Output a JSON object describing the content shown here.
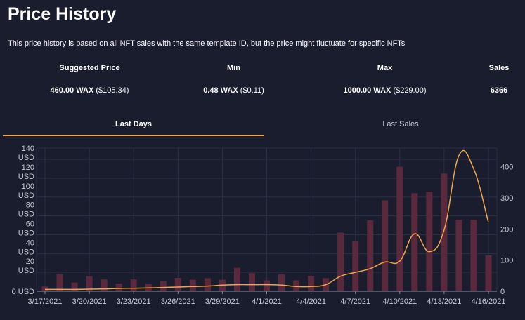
{
  "header": {
    "title": "Price History",
    "description": "This price history is based on all NFT sales with the same template ID, but the price might fluctuate for specific NFTs"
  },
  "stats": {
    "suggested": {
      "label": "Suggested Price",
      "value_bold": "460.00 WAX",
      "value_rest": " ($105.34)"
    },
    "min": {
      "label": "Min",
      "value_bold": "0.48 WAX",
      "value_rest": " ($0.11)"
    },
    "max": {
      "label": "Max",
      "value_bold": "1000.00 WAX",
      "value_rest": " ($229.00)"
    },
    "sales": {
      "label": "Sales",
      "value_bold": "6366",
      "value_rest": ""
    }
  },
  "tabs": [
    {
      "label": "Last Days",
      "active": true
    },
    {
      "label": "Last Sales",
      "active": false
    }
  ],
  "colors": {
    "background": "#1a1d2e",
    "accent": "#f0a54a",
    "bar": "#5a2a3c",
    "grid": "#2c3046"
  },
  "chart_data": {
    "type": "bar",
    "x_ticks": [
      "3/17/2021",
      "3/20/2021",
      "3/23/2021",
      "3/26/2021",
      "3/29/2021",
      "4/1/2021",
      "4/4/2021",
      "4/7/2021",
      "4/10/2021",
      "4/13/2021",
      "4/16/2021"
    ],
    "x": [
      "3/17/2021",
      "3/18/2021",
      "3/19/2021",
      "3/20/2021",
      "3/21/2021",
      "3/22/2021",
      "3/23/2021",
      "3/24/2021",
      "3/25/2021",
      "3/26/2021",
      "3/27/2021",
      "3/28/2021",
      "3/29/2021",
      "3/30/2021",
      "3/31/2021",
      "4/1/2021",
      "4/2/2021",
      "4/3/2021",
      "4/4/2021",
      "4/5/2021",
      "4/6/2021",
      "4/7/2021",
      "4/8/2021",
      "4/9/2021",
      "4/10/2021",
      "4/11/2021",
      "4/12/2021",
      "4/13/2021",
      "4/14/2021",
      "4/15/2021",
      "4/16/2021"
    ],
    "series": [
      {
        "type": "bar",
        "axis": "right",
        "values": [
          15,
          55,
          28,
          48,
          38,
          25,
          38,
          25,
          33,
          43,
          37,
          42,
          37,
          75,
          58,
          35,
          54,
          35,
          49,
          42,
          188,
          160,
          228,
          292,
          400,
          315,
          320,
          378,
          230,
          230,
          115
        ]
      },
      {
        "type": "line",
        "axis": "left",
        "values": [
          2,
          2,
          2,
          2.2,
          2.5,
          3,
          3.2,
          3.5,
          4,
          4.5,
          5,
          5.5,
          6.5,
          7,
          7,
          7,
          6.5,
          5,
          5,
          7,
          16,
          20,
          24,
          31,
          32,
          61,
          42,
          65,
          144,
          130,
          73
        ]
      }
    ],
    "y_left": {
      "ticks": [
        "0 USD",
        "20 USD",
        "40 USD",
        "60 USD",
        "80 USD",
        "100 USD",
        "120 USD",
        "140 USD"
      ],
      "ylim": [
        0,
        152
      ]
    },
    "y_right": {
      "ticks": [
        "0",
        "100",
        "200",
        "300",
        "400"
      ],
      "ylim": [
        0,
        460
      ]
    },
    "grid": true
  }
}
